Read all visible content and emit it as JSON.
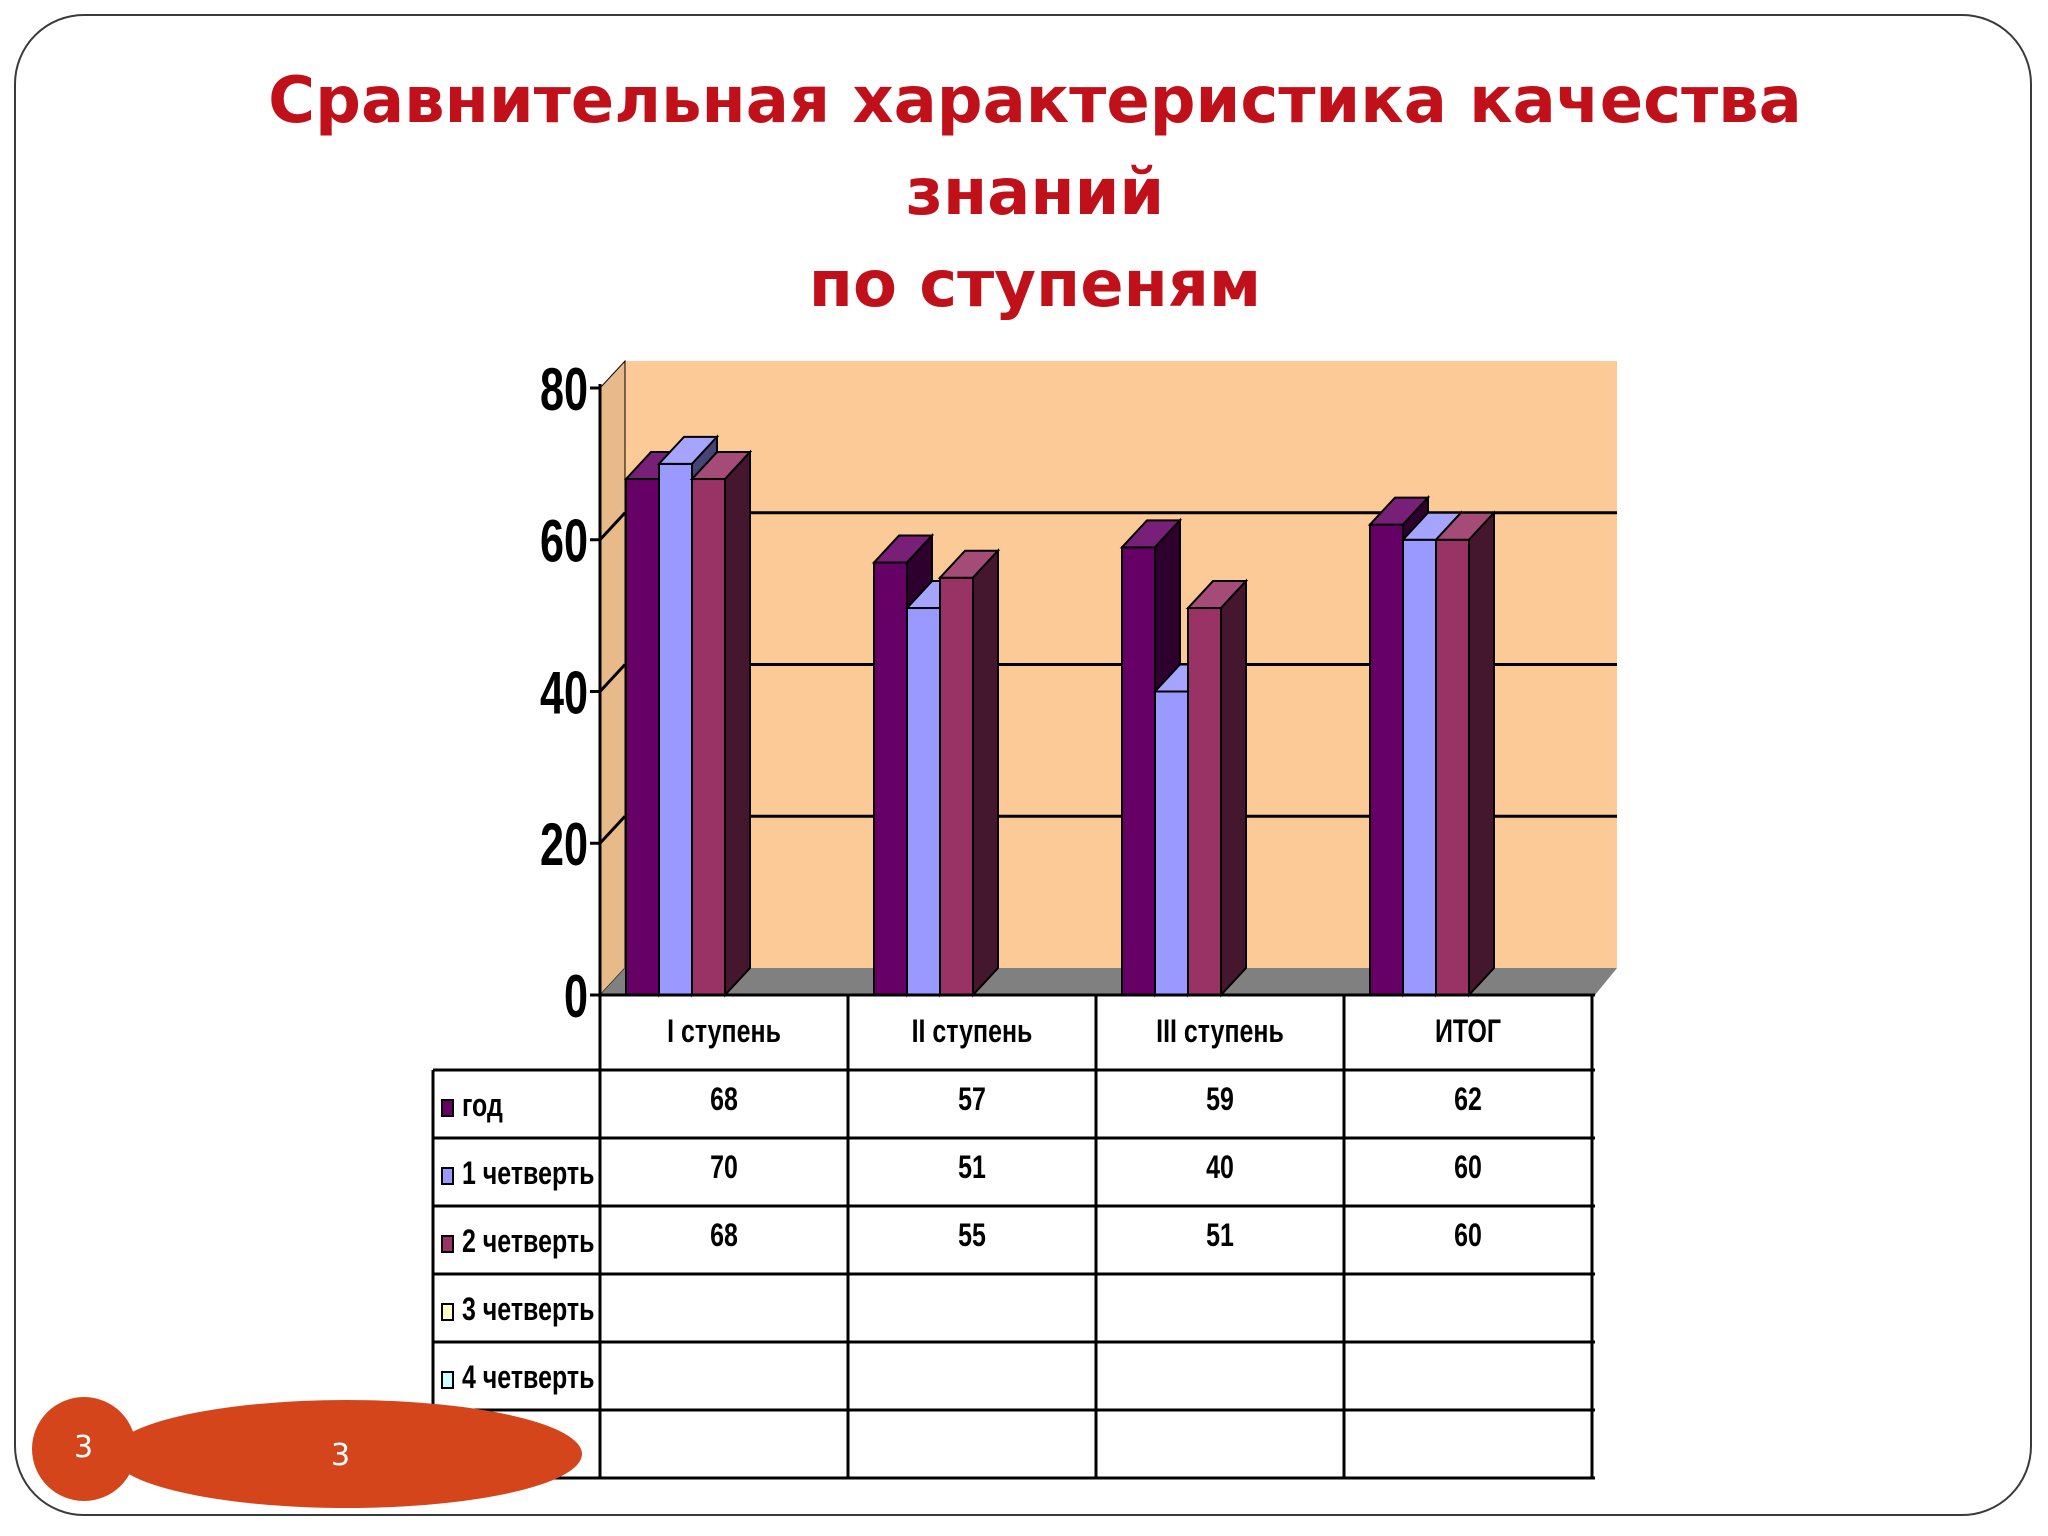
{
  "slide": {
    "title_line1": "Сравнительная характеристика качества знаний",
    "title_line2": "по ступеням",
    "page_number": "3",
    "page_number_2": "3"
  },
  "colors": {
    "title": "#c0101a",
    "plot_background": "#fcca96",
    "floor": "#808080",
    "badge": "#d4451b"
  },
  "chart_data": {
    "type": "bar",
    "style": "3d-clustered-column with data table",
    "categories": [
      "I ступень",
      "II ступень",
      "III ступень",
      "ИТОГ"
    ],
    "series": [
      {
        "name": "год",
        "values": [
          68,
          57,
          59,
          62
        ],
        "color": "#660066"
      },
      {
        "name": "1 четверть",
        "values": [
          70,
          51,
          40,
          60
        ],
        "color": "#9999ff"
      },
      {
        "name": "2 четверть",
        "values": [
          68,
          55,
          51,
          60
        ],
        "color": "#993366"
      },
      {
        "name": "3 четверть",
        "values": [
          null,
          null,
          null,
          null
        ],
        "color": "#ffffcc"
      },
      {
        "name": "4 четверть",
        "values": [
          null,
          null,
          null,
          null
        ],
        "color": "#ccffff"
      },
      {
        "name": "год",
        "values": [
          null,
          null,
          null,
          null
        ],
        "color": "#660066"
      }
    ],
    "yticks": [
      0,
      20,
      40,
      60,
      80
    ],
    "ylim": [
      0,
      80
    ],
    "grid": true,
    "legend": "data-table"
  }
}
